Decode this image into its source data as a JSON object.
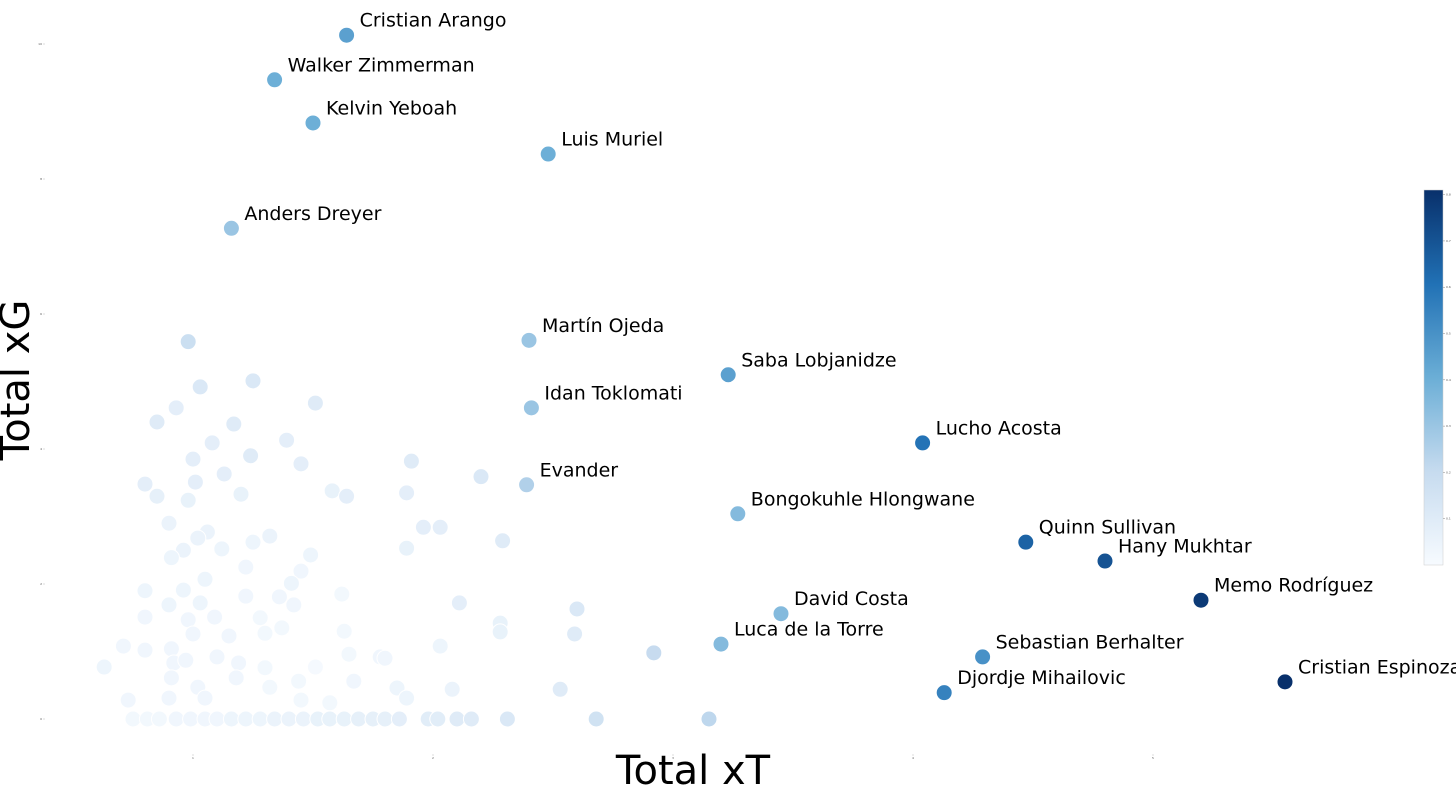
{
  "chart_data": {
    "type": "scatter",
    "x_label": "Total xT",
    "y_label": "Total xG",
    "xlim": [
      0.4,
      6.1
    ],
    "xticks": [
      1,
      2,
      3,
      4,
      5
    ],
    "ylim": [
      -0.5,
      10.5
    ],
    "yticks": [
      0,
      2,
      4,
      6,
      8,
      10
    ],
    "colormap": "Blues",
    "clim": [
      0,
      0.81
    ],
    "cticks": [
      0.1,
      0.2,
      0.3,
      0.4,
      0.5,
      0.6,
      0.7,
      0.8
    ],
    "series": [
      {
        "x": [
          0.75,
          0.81,
          0.86,
          0.93,
          0.99,
          1.05,
          1.1,
          1.16,
          1.22,
          1.28,
          1.34,
          1.4,
          1.46,
          1.52,
          1.57,
          1.63,
          1.69,
          1.75,
          1.8,
          1.86,
          1.98,
          2.02,
          2.1,
          2.16,
          2.31,
          2.68,
          3.15,
          0.98,
          1.03,
          1.25,
          1.51,
          0.85,
          0.93,
          1.17,
          1.08,
          1.39,
          1.0,
          1.24,
          1.45,
          1.13,
          1.01,
          0.8,
          0.85,
          0.98,
          1.2,
          1.58,
          1.64,
          1.89,
          1.91,
          2.2,
          1.96,
          2.03,
          2.29,
          1.89,
          0.9,
          1.06,
          1.32,
          1.25,
          0.96,
          1.02,
          1.12,
          1.49,
          0.91,
          1.22,
          1.45,
          1.05,
          0.8,
          0.96,
          1.41,
          1.62,
          0.9,
          1.03,
          1.22,
          1.36,
          1.42,
          2.11,
          2.6,
          0.8,
          0.98,
          1.09,
          1.28,
          1.37,
          2.28,
          2.28,
          2.59,
          1.63,
          0.71,
          0.8,
          0.91,
          1.0,
          1.15,
          1.3,
          2.03,
          2.92,
          0.63,
          0.92,
          0.97,
          1.1,
          1.19,
          1.3,
          1.51,
          1.65,
          1.78,
          1.8,
          0.91,
          1.02,
          1.18,
          1.32,
          1.44,
          1.67,
          1.85,
          2.08,
          2.53,
          0.73,
          0.9,
          1.05,
          1.45,
          1.57,
          1.89
        ],
        "values": [
          0,
          0,
          0,
          0,
          0,
          0,
          0,
          0,
          0,
          0,
          0,
          0,
          0,
          0,
          0,
          0,
          0,
          0,
          0,
          0,
          0,
          0,
          0,
          0,
          0,
          0,
          0,
          5.59,
          4.92,
          5.01,
          4.68,
          4.4,
          4.61,
          4.37,
          4.09,
          4.13,
          3.85,
          3.9,
          3.78,
          3.63,
          3.51,
          3.48,
          3.3,
          3.24,
          3.33,
          3.38,
          3.3,
          3.35,
          3.82,
          3.59,
          2.84,
          2.84,
          2.64,
          2.53,
          2.9,
          2.77,
          2.71,
          2.62,
          2.5,
          2.68,
          2.52,
          2.43,
          2.39,
          2.25,
          2.19,
          2.07,
          1.9,
          1.91,
          2.01,
          1.85,
          1.69,
          1.72,
          1.82,
          1.81,
          1.69,
          1.72,
          1.63,
          1.51,
          1.47,
          1.51,
          1.5,
          1.35,
          1.42,
          1.29,
          1.26,
          1.3,
          1.08,
          1.02,
          1.04,
          1.26,
          1.23,
          1.27,
          1.08,
          0.98,
          0.77,
          0.83,
          0.87,
          0.92,
          0.83,
          0.76,
          0.77,
          0.96,
          0.92,
          0.9,
          0.61,
          0.47,
          0.61,
          0.47,
          0.56,
          0.56,
          0.46,
          0.44,
          0.44,
          0.28,
          0.31,
          0.31,
          0.28,
          0.24,
          0.31
        ],
        "c": [
          0.02,
          0.02,
          0.02,
          0.03,
          0.03,
          0.03,
          0.03,
          0.04,
          0.04,
          0.04,
          0.05,
          0.05,
          0.05,
          0.06,
          0.06,
          0.06,
          0.07,
          0.07,
          0.07,
          0.08,
          0.09,
          0.09,
          0.1,
          0.1,
          0.12,
          0.16,
          0.22,
          0.18,
          0.12,
          0.12,
          0.1,
          0.1,
          0.08,
          0.1,
          0.08,
          0.08,
          0.08,
          0.1,
          0.08,
          0.08,
          0.08,
          0.08,
          0.07,
          0.06,
          0.06,
          0.06,
          0.08,
          0.08,
          0.1,
          0.12,
          0.08,
          0.08,
          0.1,
          0.06,
          0.05,
          0.05,
          0.05,
          0.04,
          0.05,
          0.05,
          0.04,
          0.04,
          0.04,
          0.03,
          0.03,
          0.04,
          0.04,
          0.04,
          0.04,
          0.02,
          0.04,
          0.04,
          0.03,
          0.03,
          0.03,
          0.08,
          0.12,
          0.03,
          0.03,
          0.03,
          0.02,
          0.02,
          0.06,
          0.06,
          0.1,
          0.02,
          0.03,
          0.03,
          0.03,
          0.03,
          0.03,
          0.02,
          0.04,
          0.2,
          0.04,
          0.03,
          0.03,
          0.03,
          0.03,
          0.02,
          0.01,
          0.02,
          0.03,
          0.03,
          0.03,
          0.03,
          0.03,
          0.02,
          0.02,
          0.03,
          0.04,
          0.05,
          0.1,
          0.03,
          0.03,
          0.03,
          0.02,
          0.02,
          0.04
        ]
      },
      {
        "x": [
          1.64,
          1.34,
          1.5,
          2.48,
          1.16,
          2.4,
          3.23,
          2.41,
          4.04,
          2.39,
          3.27,
          4.47,
          4.8,
          5.2,
          3.45,
          3.2,
          4.29,
          4.13,
          5.55
        ],
        "values": [
          10.13,
          9.47,
          8.83,
          8.37,
          7.27,
          5.61,
          5.1,
          4.61,
          4.09,
          3.47,
          3.04,
          2.62,
          2.34,
          1.76,
          1.56,
          1.11,
          0.92,
          0.39,
          0.55
        ],
        "c": [
          0.45,
          0.4,
          0.4,
          0.4,
          0.3,
          0.3,
          0.45,
          0.3,
          0.6,
          0.25,
          0.35,
          0.65,
          0.7,
          0.78,
          0.35,
          0.35,
          0.5,
          0.55,
          0.81
        ],
        "labels": [
          "Cristian Arango",
          "Walker Zimmerman",
          "Kelvin Yeboah",
          "Luis Muriel",
          "Anders Dreyer",
          "Martín Ojeda",
          "Saba Lobjanidze",
          "Idan Toklomati",
          "Lucho Acosta",
          "Evander",
          "Bongokuhle Hlongwane",
          "Quinn Sullivan",
          "Hany Mukhtar",
          "Memo Rodríguez",
          "David Costa",
          "Luca de la Torre",
          "Sebastian Berhalter",
          "Djordje Mihailovic",
          "Cristian Espinoza"
        ]
      }
    ]
  }
}
